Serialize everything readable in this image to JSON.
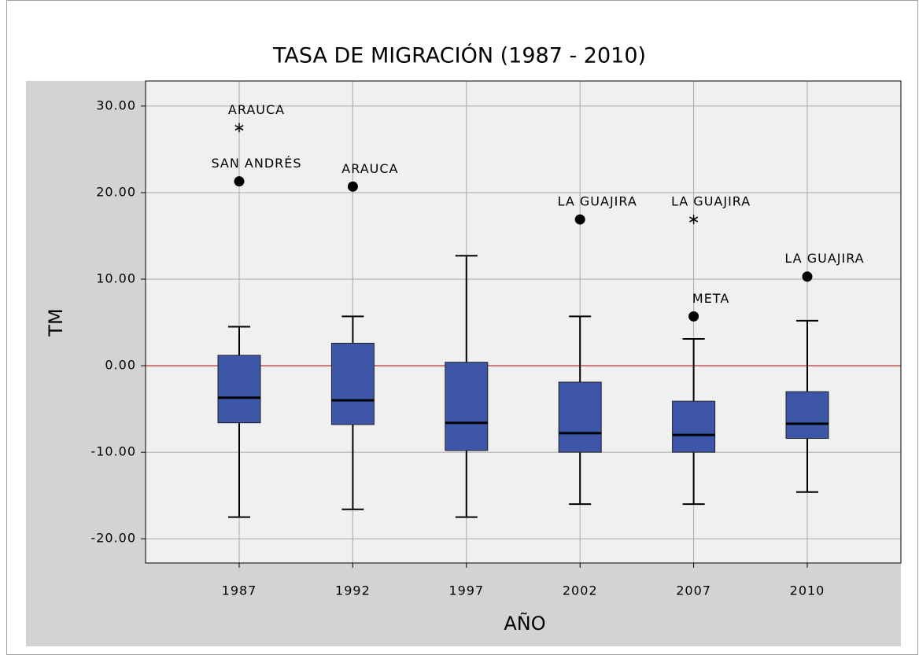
{
  "chart_data": {
    "type": "box",
    "title": "TASA DE MIGRACIÓN (1987 - 2010)",
    "x_label": "AÑO",
    "y_label": "TM",
    "categories": [
      "1987",
      "1992",
      "1997",
      "2002",
      "2007",
      "2010"
    ],
    "box_color": "#3d56a8",
    "boxes": [
      {
        "whisker_low": -17.5,
        "q1": -6.6,
        "median": -3.7,
        "q3": 1.2,
        "whisker_high": 4.5,
        "outliers": [
          {
            "value": 21.3,
            "label": "SAN ANDRÉS",
            "marker": "circle"
          },
          {
            "value": 27.5,
            "label": "ARAUCA",
            "marker": "star"
          }
        ]
      },
      {
        "whisker_low": -16.6,
        "q1": -6.8,
        "median": -4.0,
        "q3": 2.6,
        "whisker_high": 5.7,
        "outliers": [
          {
            "value": 20.7,
            "label": "ARAUCA",
            "marker": "circle"
          }
        ]
      },
      {
        "whisker_low": -17.5,
        "q1": -9.8,
        "median": -6.6,
        "q3": 0.4,
        "whisker_high": 12.7,
        "outliers": []
      },
      {
        "whisker_low": -16.0,
        "q1": -10.0,
        "median": -7.8,
        "q3": -1.9,
        "whisker_high": 5.7,
        "outliers": [
          {
            "value": 16.9,
            "label": "LA GUAJIRA",
            "marker": "circle"
          }
        ]
      },
      {
        "whisker_low": -16.0,
        "q1": -10.0,
        "median": -8.0,
        "q3": -4.1,
        "whisker_high": 3.1,
        "outliers": [
          {
            "value": 5.7,
            "label": "META",
            "marker": "circle"
          },
          {
            "value": 16.9,
            "label": "LA GUAJIRA",
            "marker": "star"
          }
        ]
      },
      {
        "whisker_low": -14.6,
        "q1": -8.4,
        "median": -6.7,
        "q3": -3.0,
        "whisker_high": 5.2,
        "outliers": [
          {
            "value": 10.3,
            "label": "LA GUAJIRA",
            "marker": "circle"
          }
        ]
      }
    ],
    "ylim": [
      -22.8,
      32.9
    ],
    "yticks": [
      {
        "value": -20,
        "label": "-20.00"
      },
      {
        "value": -10,
        "label": "-10.00"
      },
      {
        "value": 0,
        "label": "0.00"
      },
      {
        "value": 10,
        "label": "10.00"
      },
      {
        "value": 20,
        "label": "20.00"
      },
      {
        "value": 30,
        "label": "30.00"
      }
    ],
    "grid": true,
    "reference_line": {
      "value": 0,
      "color": "#c0504d"
    }
  }
}
